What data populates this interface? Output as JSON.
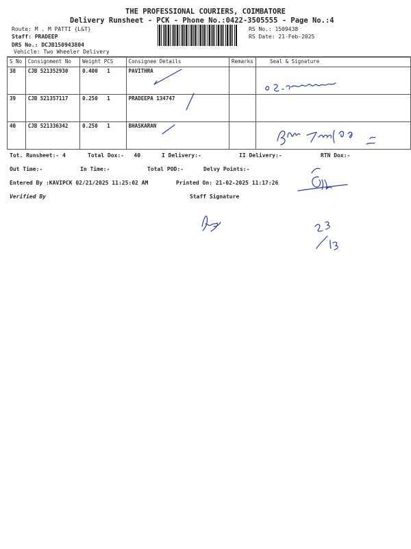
{
  "header": {
    "company": "THE PROFESSIONAL COURIERS, COIMBATORE",
    "subtitle": "Delivery Runsheet - PCK - Phone No.:0422-3505555 - Page No.:4",
    "route": "Route: M . M PATTI {L&T}",
    "staff": "Staff: PRADEEP",
    "drs_no": "DRS No.: DCJB150943804",
    "vehicle": "Vehicle: Two Wheeler Delivery",
    "rs_no": "RS No.: 1509438",
    "rs_date": "RS Date: 21-Feb-2025"
  },
  "table": {
    "columns": [
      "S No",
      "Consignment No",
      "Weight  PCS",
      "Consignee Details",
      "Remarks",
      "Seal & Signature"
    ],
    "rows": [
      {
        "sno": "38",
        "consignment": "CJB 521352930",
        "weight": "0.400",
        "pcs": "1",
        "consignee": "PAVITHRA"
      },
      {
        "sno": "39",
        "consignment": "CJB 521357117",
        "weight": "0.250",
        "pcs": "1",
        "consignee": "PRADEEPA 134747"
      },
      {
        "sno": "40",
        "consignment": "CJB 521336342",
        "weight": "0.250",
        "pcs": "1",
        "consignee": "BHASKARAN"
      }
    ]
  },
  "summary": {
    "tot_runsheet": "Tot. Runsheet:- 4",
    "total_dox": "Total Dox:-   40",
    "i_delivery": "I Delivery:-",
    "ii_delivery": "II Delivery:-",
    "rtn_dox": "RTN Dox:-",
    "out_time": "Out Time:-",
    "in_time": "In Time:-",
    "total_pod": "Total POD:-",
    "delvy_points": "Delvy Points:-",
    "entered_by": "Entered By :KAVIPCK 02/21/2025 11:25:02 AM",
    "printed_on": "Printed On: 21-02-2025 11:17:26",
    "verified_by": "Verified By",
    "staff_signature": "Staff Signature"
  },
  "colors": {
    "ink": "#2a3a9a",
    "text": "#222222"
  }
}
